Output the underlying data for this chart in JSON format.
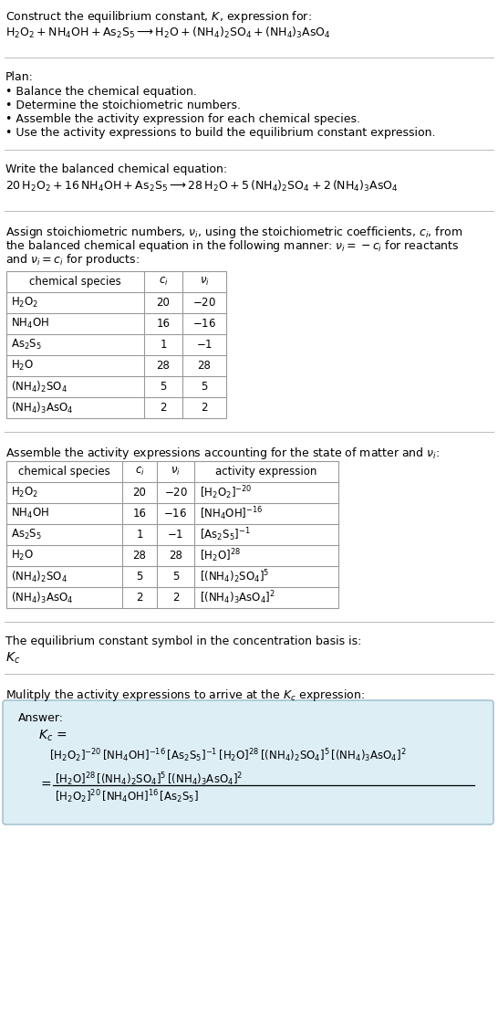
{
  "bg_color": "#ffffff",
  "text_color": "#000000",
  "divider_color": "#bbbbbb",
  "table_border_color": "#999999",
  "answer_box_color": "#ddeef5",
  "answer_box_border": "#99bbcc",
  "title_line1": "Construct the equilibrium constant, $K$, expression for:",
  "title_eq": "$\\mathrm{H_2O_2 + NH_4OH + As_2S_5 \\longrightarrow H_2O + (NH_4)_2SO_4 + (NH_4)_3AsO_4}$",
  "plan_header": "Plan:",
  "plan_items": [
    "Balance the chemical equation.",
    "Determine the stoichiometric numbers.",
    "Assemble the activity expression for each chemical species.",
    "Use the activity expressions to build the equilibrium constant expression."
  ],
  "balanced_header": "Write the balanced chemical equation:",
  "balanced_eq": "$\\mathrm{20\\,H_2O_2 + 16\\,NH_4OH + As_2S_5 \\longrightarrow 28\\,H_2O + 5\\,(NH_4)_2SO_4 + 2\\,(NH_4)_3AsO_4}$",
  "stoich_intro": [
    "Assign stoichiometric numbers, $\\nu_i$, using the stoichiometric coefficients, $c_i$, from",
    "the balanced chemical equation in the following manner: $\\nu_i = -c_i$ for reactants",
    "and $\\nu_i = c_i$ for products:"
  ],
  "table1_headers": [
    "chemical species",
    "$c_i$",
    "$\\nu_i$"
  ],
  "table1_rows": [
    [
      "$\\mathrm{H_2O_2}$",
      "20",
      "$-20$"
    ],
    [
      "$\\mathrm{NH_4OH}$",
      "16",
      "$-16$"
    ],
    [
      "$\\mathrm{As_2S_5}$",
      "1",
      "$-1$"
    ],
    [
      "$\\mathrm{H_2O}$",
      "28",
      "28"
    ],
    [
      "$\\mathrm{(NH_4)_2SO_4}$",
      "5",
      "5"
    ],
    [
      "$\\mathrm{(NH_4)_3AsO_4}$",
      "2",
      "2"
    ]
  ],
  "activity_intro": "Assemble the activity expressions accounting for the state of matter and $\\nu_i$:",
  "table2_headers": [
    "chemical species",
    "$c_i$",
    "$\\nu_i$",
    "activity expression"
  ],
  "table2_rows": [
    [
      "$\\mathrm{H_2O_2}$",
      "20",
      "$-20$",
      "$[\\mathrm{H_2O_2}]^{-20}$"
    ],
    [
      "$\\mathrm{NH_4OH}$",
      "16",
      "$-16$",
      "$[\\mathrm{NH_4OH}]^{-16}$"
    ],
    [
      "$\\mathrm{As_2S_5}$",
      "1",
      "$-1$",
      "$[\\mathrm{As_2S_5}]^{-1}$"
    ],
    [
      "$\\mathrm{H_2O}$",
      "28",
      "28",
      "$[\\mathrm{H_2O}]^{28}$"
    ],
    [
      "$\\mathrm{(NH_4)_2SO_4}$",
      "5",
      "5",
      "$[(\\mathrm{NH_4})_2\\mathrm{SO_4}]^5$"
    ],
    [
      "$\\mathrm{(NH_4)_3AsO_4}$",
      "2",
      "2",
      "$[(\\mathrm{NH_4})_3\\mathrm{AsO_4}]^2$"
    ]
  ],
  "kc_header": "The equilibrium constant symbol in the concentration basis is:",
  "kc_symbol": "$K_c$",
  "multiply_header": "Mulitply the activity expressions to arrive at the $K_c$ expression:",
  "answer_label": "Answer:",
  "answer_kc_eq": "$K_c\\, =$",
  "answer_long": "$[\\mathrm{H_2O_2}]^{-20}\\,[\\mathrm{NH_4OH}]^{-16}\\,[\\mathrm{As_2S_5}]^{-1}\\,[\\mathrm{H_2O}]^{28}\\,[(\\mathrm{NH_4})_2\\mathrm{SO_4}]^5\\,[(\\mathrm{NH_4})_3\\mathrm{AsO_4}]^2$",
  "answer_num": "$[\\mathrm{H_2O}]^{28}\\,[(\\mathrm{NH_4})_2\\mathrm{SO_4}]^5\\,[(\\mathrm{NH_4})_3\\mathrm{AsO_4}]^2$",
  "answer_den": "$[\\mathrm{H_2O_2}]^{20}\\,[\\mathrm{NH_4OH}]^{16}\\,[\\mathrm{As_2S_5}]$"
}
